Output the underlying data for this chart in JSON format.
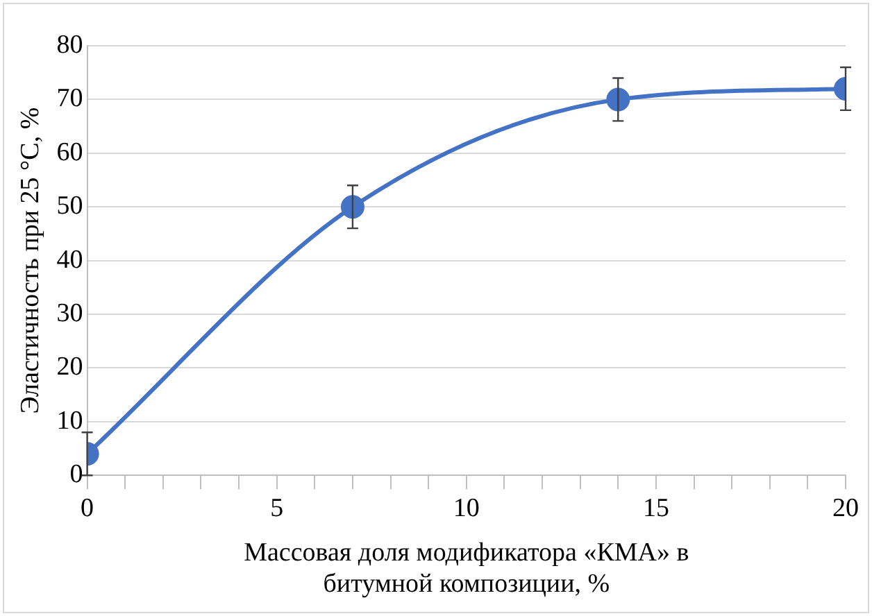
{
  "chart_data": {
    "type": "line",
    "xlabel": "Массовая доля модификатора «КМА» в\nбитумной композиции, %",
    "ylabel": "Эластичность при 25 °С, %",
    "x": [
      0,
      7,
      14,
      20
    ],
    "series": [
      {
        "color": "#4472c4",
        "values": [
          4,
          50,
          70,
          72
        ],
        "errors": [
          4,
          4,
          4,
          4
        ]
      }
    ],
    "xlim": [
      0,
      20
    ],
    "xticks": [
      0,
      {
        "value": 1,
        "label": null
      },
      {
        "value": 2,
        "label": null
      },
      {
        "value": 3,
        "label": null
      },
      {
        "value": 4,
        "label": null
      },
      5,
      {
        "value": 6,
        "label": null
      },
      {
        "value": 7,
        "label": null
      },
      {
        "value": 8,
        "label": null
      },
      {
        "value": 9,
        "label": null
      },
      10,
      {
        "value": 11,
        "label": null
      },
      {
        "value": 12,
        "label": null
      },
      {
        "value": 13,
        "label": null
      },
      {
        "value": 14,
        "label": null
      },
      15,
      {
        "value": 16,
        "label": null
      },
      {
        "value": 17,
        "label": null
      },
      {
        "value": 18,
        "label": null
      },
      {
        "value": 19,
        "label": null
      },
      20
    ],
    "ylim": [
      0,
      80
    ],
    "yticks": [
      0,
      10,
      20,
      30,
      40,
      50,
      60,
      70,
      80
    ],
    "grid": "y",
    "legend": false,
    "marker": "circle",
    "line_style": "solid"
  }
}
